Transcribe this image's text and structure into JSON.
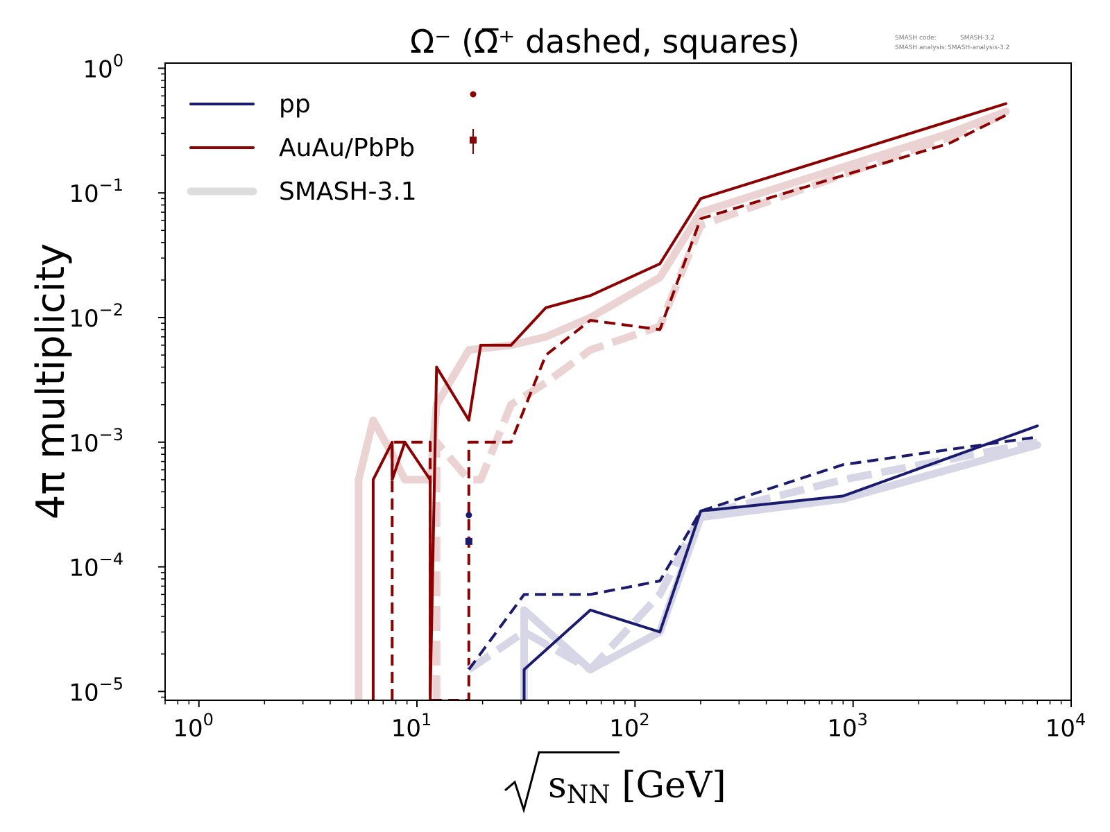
{
  "title": "Ω⁻ (Ω̅⁺ dashed, squares)",
  "version_info": {
    "code_label": "SMASH code:",
    "code_value": "SMASH-3.2",
    "analysis_label": "SMASH analysis:",
    "analysis_value": "SMASH-analysis-3.2"
  },
  "colors": {
    "pp": "#1a1a6e",
    "aa": "#8b0000",
    "pp_light": "#d6d6e6",
    "aa_light": "#ecd3d3",
    "smash": "#dddddd"
  },
  "chart_data": {
    "type": "line",
    "title": "Ω⁻ (Ω̅⁺ dashed, squares)",
    "xlabel": "√sNN [GeV]",
    "ylabel": "4π multiplicity",
    "x_scale": "log",
    "y_scale": "log",
    "xlim": [
      0.7,
      10000
    ],
    "ylim": [
      8.5e-06,
      1.1
    ],
    "x_ticks": [
      {
        "value": 1,
        "base": "10",
        "exp": "0"
      },
      {
        "value": 10,
        "base": "10",
        "exp": "1"
      },
      {
        "value": 100,
        "base": "10",
        "exp": "2"
      },
      {
        "value": 1000,
        "base": "10",
        "exp": "3"
      },
      {
        "value": 10000,
        "base": "10",
        "exp": "4"
      }
    ],
    "y_ticks": [
      {
        "value": 1,
        "base": "10",
        "exp": "0"
      },
      {
        "value": 0.1,
        "base": "10",
        "exp": "−1"
      },
      {
        "value": 0.01,
        "base": "10",
        "exp": "−2"
      },
      {
        "value": 0.001,
        "base": "10",
        "exp": "−3"
      },
      {
        "value": 0.0001,
        "base": "10",
        "exp": "−4"
      },
      {
        "value": 1e-05,
        "base": "10",
        "exp": "−5"
      }
    ],
    "legend": {
      "position": "top-left",
      "entries": [
        "pp",
        "AuAu/PbPb",
        "SMASH-3.1"
      ]
    },
    "series": [
      {
        "key": "smash_aa",
        "color": "#ecd3d3",
        "dash": false,
        "width": 11,
        "x": [
          5.4,
          5.4,
          6.3,
          7.7,
          8.8,
          11.5,
          11.5,
          12.3,
          17.3,
          27,
          39,
          62.4,
          130,
          200,
          2760,
          5020
        ],
        "y": [
          8.5e-06,
          0.0005,
          0.0015,
          0.0008,
          0.0005,
          0.0005,
          0.0005,
          0.002,
          0.0055,
          0.006,
          0.007,
          0.01,
          0.021,
          0.07,
          0.3,
          0.45
        ]
      },
      {
        "key": "smash_aa_anti",
        "color": "#ecd3d3",
        "dash": true,
        "width": 11,
        "x": [
          12.3,
          12.3,
          17.3,
          19.6,
          27,
          39,
          62.4,
          130,
          200,
          2760,
          5020
        ],
        "y": [
          8.5e-06,
          0.001,
          0.0005,
          0.0005,
          0.002,
          0.003,
          0.0055,
          0.0085,
          0.055,
          0.28,
          0.43
        ]
      },
      {
        "key": "aa",
        "color": "#8b0000",
        "dash": false,
        "width": 4,
        "x": [
          6.3,
          6.3,
          7.7,
          7.7,
          8.8,
          11.5,
          11.5,
          12.3,
          17.3,
          19.6,
          27,
          39,
          62.4,
          130,
          200,
          5020
        ],
        "y": [
          8.5e-06,
          0.0005,
          0.001,
          0.0005,
          0.001,
          0.0005,
          8.5e-06,
          0.004,
          0.0015,
          0.006,
          0.006,
          0.012,
          0.015,
          0.027,
          0.09,
          0.52
        ]
      },
      {
        "key": "aa_anti",
        "color": "#8b0000",
        "dash": true,
        "width": 4,
        "x": [
          7.7,
          7.7,
          11.5,
          11.5,
          17.3,
          17.3,
          27,
          39,
          62.4,
          130,
          200,
          2760,
          5020
        ],
        "y": [
          8.5e-06,
          0.001,
          0.001,
          8.5e-06,
          8.5e-06,
          0.001,
          0.001,
          0.005,
          0.0095,
          0.008,
          0.062,
          0.25,
          0.42
        ]
      },
      {
        "key": "smash_pp",
        "color": "#d6d6e6",
        "dash": false,
        "width": 11,
        "x": [
          31,
          31,
          62.4,
          130,
          200,
          900,
          7000
        ],
        "y": [
          8.5e-06,
          4.5e-05,
          1.5e-05,
          3e-05,
          0.00025,
          0.00035,
          0.00095
        ]
      },
      {
        "key": "smash_pp_anti",
        "color": "#d6d6e6",
        "dash": true,
        "width": 11,
        "x": [
          17.3,
          31,
          62.4,
          130,
          200,
          900,
          7000
        ],
        "y": [
          1.5e-05,
          3e-05,
          1.5e-05,
          6e-05,
          0.00026,
          0.0005,
          0.001
        ]
      },
      {
        "key": "pp",
        "color": "#1a1a6e",
        "dash": false,
        "width": 4,
        "x": [
          31,
          31,
          62.4,
          130,
          200,
          900,
          7000
        ],
        "y": [
          8.5e-06,
          1.5e-05,
          4.5e-05,
          3e-05,
          0.00028,
          0.00037,
          0.00135
        ]
      },
      {
        "key": "pp_anti",
        "color": "#1a1a6e",
        "dash": true,
        "width": 4,
        "x": [
          17.3,
          31,
          62.4,
          130,
          200,
          900,
          7000
        ],
        "y": [
          1.5e-05,
          6e-05,
          6e-05,
          7.7e-05,
          0.00028,
          0.00066,
          0.0011
        ]
      }
    ],
    "data_points": [
      {
        "key": "pp_data_circle",
        "x": 17.3,
        "y": 0.00026,
        "color": "#1a1a6e",
        "marker": "circle"
      },
      {
        "key": "pp_data_square",
        "x": 17.3,
        "y": 0.00016,
        "color": "#1a1a6e",
        "marker": "square"
      }
    ]
  }
}
